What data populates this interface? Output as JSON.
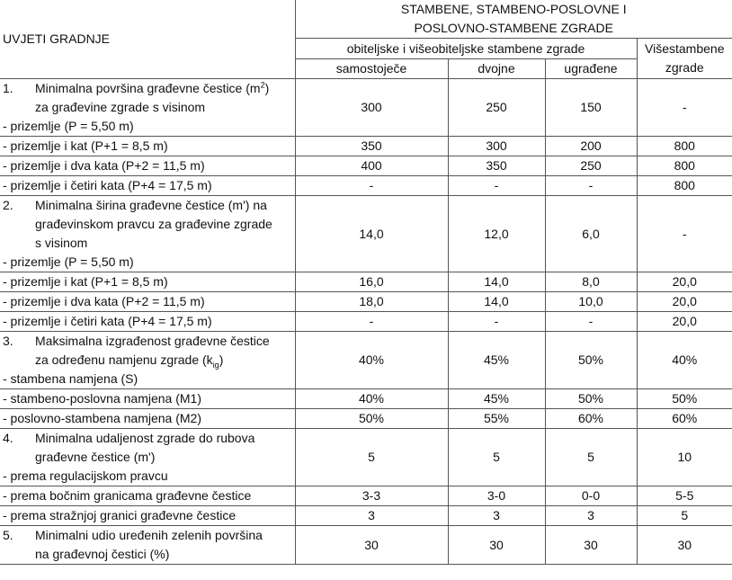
{
  "header": {
    "row_label": "UVJETI GRADNJE",
    "group": "STAMBENE, STAMBENO-POSLOVNE I POSLOVNO-STAMBENE ZGRADE",
    "group_line1": "STAMBENE, STAMBENO-POSLOVNE I",
    "group_line2": "POSLOVNO-STAMBENE ZGRADE",
    "subgroup": "obiteljske i višeobiteljske stambene zgrade",
    "multi_line1": "Višestambene",
    "multi_line2": "zgrade",
    "cols": [
      "samostoječe",
      "dvojne",
      "ugrađene"
    ]
  },
  "sections": [
    {
      "num": "1.",
      "title_lines": [
        "Minimalna površina građevne čestice (m",
        "za građevine zgrade s visinom"
      ],
      "title_sup": "2",
      "title_sup_close": ")",
      "rows": [
        {
          "label": "- prizemlje (P = 5,50 m)",
          "values": [
            "300",
            "250",
            "150",
            "-"
          ]
        },
        {
          "label": "- prizemlje i kat (P+1 = 8,5 m)",
          "values": [
            "350",
            "300",
            "200",
            "800"
          ]
        },
        {
          "label": "- prizemlje i dva kata (P+2 = 11,5 m)",
          "values": [
            "400",
            "350",
            "250",
            "800"
          ]
        },
        {
          "label": "- prizemlje i četiri kata (P+4 = 17,5 m)",
          "values": [
            "-",
            "-",
            "-",
            "800"
          ]
        }
      ]
    },
    {
      "num": "2.",
      "title_lines": [
        "Minimalna širina građevne čestice (m') na",
        "građevinskom pravcu za građevine zgrade",
        "s visinom"
      ],
      "rows": [
        {
          "label": "- prizemlje (P = 5,50 m)",
          "values": [
            "14,0",
            "12,0",
            "6,0",
            "-"
          ]
        },
        {
          "label": "- prizemlje i kat (P+1 = 8,5 m)",
          "values": [
            "16,0",
            "14,0",
            "8,0",
            "20,0"
          ]
        },
        {
          "label": "- prizemlje i dva kata (P+2 = 11,5 m)",
          "values": [
            "18,0",
            "14,0",
            "10,0",
            "20,0"
          ]
        },
        {
          "label": "- prizemlje i četiri kata (P+4 = 17,5 m)",
          "values": [
            "-",
            "-",
            "-",
            "20,0"
          ]
        }
      ]
    },
    {
      "num": "3.",
      "title_lines": [
        "Maksimalna izgrađenost građevne čestice",
        "za određenu namjenu zgrade (k"
      ],
      "title_sub": "ig",
      "title_sub_close": ")",
      "rows": [
        {
          "label": "- stambena namjena (S)",
          "values": [
            "40%",
            "45%",
            "50%",
            "40%"
          ]
        },
        {
          "label": "- stambeno-poslovna namjena (M1)",
          "values": [
            "40%",
            "45%",
            "50%",
            "50%"
          ]
        },
        {
          "label": "- poslovno-stambena namjena (M2)",
          "values": [
            "50%",
            "55%",
            "60%",
            "60%"
          ]
        }
      ]
    },
    {
      "num": "4.",
      "title_lines": [
        "Minimalna udaljenost zgrade do rubova",
        "građevne čestice (m')"
      ],
      "rows": [
        {
          "label": "- prema regulacijskom pravcu",
          "values": [
            "5",
            "5",
            "5",
            "10"
          ]
        },
        {
          "label": "- prema bočnim granicama građevne čestice",
          "values": [
            "3-3",
            "3-0",
            "0-0",
            "5-5"
          ]
        },
        {
          "label": "- prema stražnjoj granici građevne čestice",
          "values": [
            "3",
            "3",
            "3",
            "5"
          ]
        }
      ]
    },
    {
      "num": "5.",
      "title_lines": [
        "Minimalni udio uređenih zelenih površina",
        "na građevnoj čestici (%)"
      ],
      "values": [
        "30",
        "30",
        "30",
        "30"
      ]
    }
  ]
}
